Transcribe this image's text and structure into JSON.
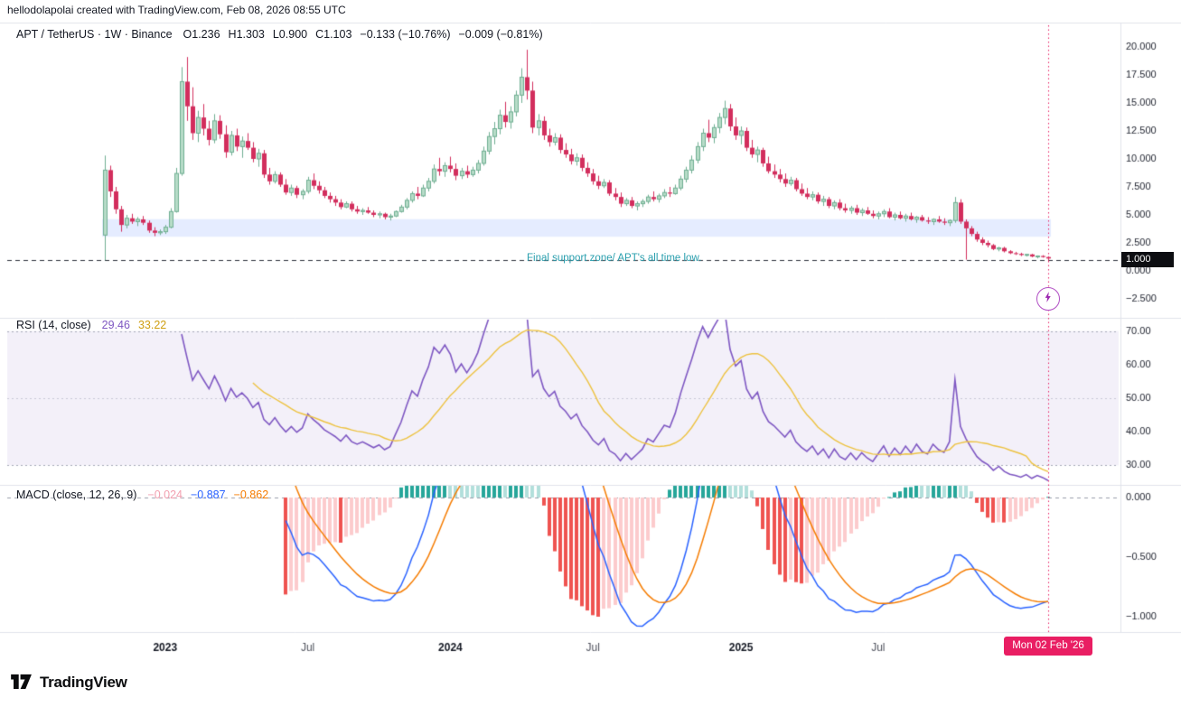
{
  "header": {
    "attribution": "hellodolapolai created with TradingView.com, Feb 08, 2026 08:55 UTC"
  },
  "footer": {
    "logo_text": "TradingView"
  },
  "legends": {
    "price": {
      "title": "APT / TetherUS · 1W · Binance",
      "ohlc": [
        "O1.236",
        "H1.303",
        "L0.900",
        "C1.103"
      ],
      "changes": [
        "−0.133 (−10.76%)",
        "−0.009 (−0.81%)"
      ]
    },
    "rsi": {
      "title": "RSI (14, close)",
      "value": "29.46",
      "ma_value": "33.22"
    },
    "macd": {
      "title": "MACD (close, 12, 26, 9)",
      "hist_value": "−0.024",
      "macd_value": "−0.887",
      "signal_value": "−0.862"
    }
  },
  "annotation_text": "Final support zone/ APT's all time low.",
  "colors": {
    "up_fill": "#b7dcc8",
    "up_border": "#6fae92",
    "down": "#d22e5d",
    "support_zone": "rgba(56,106,255,0.13)",
    "price_line": "#2a2e39",
    "annotation": "#2a9fae",
    "rsi_line": "#7e57c2",
    "rsi_ma": "#edc240",
    "rsi_band": "rgba(126,87,194,0.09)",
    "band_line": "#a5a9b8",
    "macd_line": "#2962ff",
    "signal_line": "#f57c00",
    "hist_grow_above": "#26a69a",
    "hist_fall_above": "#b2dfdb",
    "hist_grow_below": "#fccbcd",
    "hist_fall_below": "#ef5350",
    "current": "#e91e63",
    "separator": "#e0e3eb",
    "axis_text": "#1b1f2b",
    "time_text_major": "#131722",
    "time_text_minor": "#50535e"
  },
  "chart_data": {
    "type": "candlestick",
    "symbol": "APT / TetherUS",
    "interval": "1W",
    "exchange": "Binance",
    "price_axis": {
      "ticks": [
        {
          "v": 20,
          "label": "20.000"
        },
        {
          "v": 17.5,
          "label": "17.500"
        },
        {
          "v": 15,
          "label": "15.000"
        },
        {
          "v": 12.5,
          "label": "12.500"
        },
        {
          "v": 10,
          "label": "10.000"
        },
        {
          "v": 7.5,
          "label": "7.500"
        },
        {
          "v": 5,
          "label": "5.000"
        },
        {
          "v": 2.5,
          "label": "2.500"
        },
        {
          "v": 0,
          "label": "0.000"
        },
        {
          "v": -2.5,
          "label": "−2.500"
        }
      ]
    },
    "time_axis": {
      "ticks": [
        {
          "label": "2023",
          "index": 11,
          "major": true
        },
        {
          "label": "Jul",
          "index": 37,
          "major": false
        },
        {
          "label": "2024",
          "index": 63,
          "major": true
        },
        {
          "label": "Jul",
          "index": 89,
          "major": false
        },
        {
          "label": "2025",
          "index": 116,
          "major": true
        },
        {
          "label": "Jul",
          "index": 141,
          "major": false
        }
      ],
      "current_index": 172,
      "current_date_label": "Mon 02 Feb '26"
    },
    "support_zone": {
      "price_from": 3.05,
      "price_to": 4.62
    },
    "price_line": {
      "value": 1.0,
      "label": "1.000"
    },
    "indicators": {
      "rsi": {
        "length": 14,
        "ma_length": 14,
        "current": "29.46",
        "ma_current": "33.22",
        "bands": [
          70,
          50,
          30
        ],
        "ticks": [
          {
            "v": 70,
            "label": "70.00"
          },
          {
            "v": 60,
            "label": "60.00"
          },
          {
            "v": 50,
            "label": "50.00"
          },
          {
            "v": 40,
            "label": "40.00"
          },
          {
            "v": 30,
            "label": "30.00"
          }
        ]
      },
      "macd": {
        "fast": 12,
        "slow": 26,
        "signal": 9,
        "ticks": [
          {
            "v": 0,
            "label": "0.000"
          },
          {
            "v": -0.5,
            "label": "−0.500"
          },
          {
            "v": -1,
            "label": "−1.000"
          }
        ]
      }
    },
    "candles": [
      [
        3.2,
        10.3,
        0.95,
        9.0
      ],
      [
        9.0,
        9.4,
        6.6,
        7.1
      ],
      [
        7.1,
        7.5,
        5.1,
        5.5
      ],
      [
        5.5,
        5.8,
        3.5,
        4.1
      ],
      [
        4.1,
        5.0,
        3.8,
        4.7
      ],
      [
        4.7,
        5.1,
        4.2,
        4.4
      ],
      [
        4.4,
        4.8,
        4.0,
        4.6
      ],
      [
        4.6,
        4.9,
        4.1,
        4.3
      ],
      [
        4.3,
        4.5,
        3.4,
        3.6
      ],
      [
        3.6,
        3.9,
        3.1,
        3.4
      ],
      [
        3.4,
        3.7,
        3.2,
        3.5
      ],
      [
        3.5,
        4.1,
        3.3,
        3.9
      ],
      [
        3.9,
        5.6,
        3.8,
        5.3
      ],
      [
        5.3,
        9.2,
        5.2,
        8.7
      ],
      [
        8.7,
        18.2,
        8.5,
        16.9
      ],
      [
        16.9,
        19.1,
        13.4,
        14.7
      ],
      [
        14.7,
        16.4,
        11.7,
        12.3
      ],
      [
        12.3,
        14.3,
        11.5,
        13.7
      ],
      [
        13.7,
        14.9,
        12.1,
        12.7
      ],
      [
        12.7,
        13.4,
        11.2,
        11.7
      ],
      [
        11.7,
        14.0,
        11.4,
        13.4
      ],
      [
        13.4,
        13.9,
        11.8,
        12.2
      ],
      [
        12.2,
        13.0,
        10.1,
        10.6
      ],
      [
        10.6,
        12.5,
        10.3,
        12.1
      ],
      [
        12.1,
        12.7,
        10.7,
        11.1
      ],
      [
        11.1,
        12.0,
        10.1,
        11.6
      ],
      [
        11.6,
        12.3,
        10.8,
        11.0
      ],
      [
        11.0,
        11.5,
        9.7,
        10.0
      ],
      [
        10.0,
        10.9,
        9.3,
        10.5
      ],
      [
        10.5,
        10.8,
        8.3,
        8.6
      ],
      [
        8.6,
        9.2,
        7.7,
        8.0
      ],
      [
        8.0,
        8.9,
        7.8,
        8.6
      ],
      [
        8.6,
        8.8,
        7.5,
        7.7
      ],
      [
        7.7,
        8.2,
        6.8,
        7.0
      ],
      [
        7.0,
        7.7,
        6.7,
        7.4
      ],
      [
        7.4,
        7.6,
        6.5,
        6.8
      ],
      [
        6.8,
        7.3,
        6.4,
        7.1
      ],
      [
        7.1,
        8.4,
        6.9,
        8.1
      ],
      [
        8.1,
        8.7,
        7.3,
        7.6
      ],
      [
        7.6,
        8.0,
        6.9,
        7.2
      ],
      [
        7.2,
        7.5,
        6.5,
        6.7
      ],
      [
        6.7,
        7.0,
        6.1,
        6.4
      ],
      [
        6.4,
        6.7,
        5.8,
        6.1
      ],
      [
        6.1,
        6.4,
        5.5,
        5.7
      ],
      [
        5.7,
        6.2,
        5.6,
        6.0
      ],
      [
        6.0,
        6.2,
        5.3,
        5.5
      ],
      [
        5.5,
        5.8,
        5.1,
        5.3
      ],
      [
        5.3,
        5.6,
        5.0,
        5.4
      ],
      [
        5.4,
        5.7,
        5.1,
        5.2
      ],
      [
        5.2,
        5.4,
        4.8,
        5.0
      ],
      [
        5.0,
        5.3,
        4.7,
        5.1
      ],
      [
        5.1,
        5.2,
        4.6,
        4.8
      ],
      [
        4.8,
        5.1,
        4.5,
        4.9
      ],
      [
        4.9,
        5.4,
        4.8,
        5.3
      ],
      [
        5.3,
        5.9,
        5.2,
        5.7
      ],
      [
        5.7,
        6.5,
        5.5,
        6.3
      ],
      [
        6.3,
        7.1,
        6.1,
        6.9
      ],
      [
        6.9,
        7.5,
        6.4,
        6.7
      ],
      [
        6.7,
        7.7,
        6.6,
        7.4
      ],
      [
        7.4,
        8.3,
        7.1,
        8.0
      ],
      [
        8.0,
        9.5,
        7.8,
        9.1
      ],
      [
        9.1,
        10.1,
        8.5,
        8.9
      ],
      [
        8.9,
        9.7,
        8.4,
        9.4
      ],
      [
        9.4,
        10.2,
        8.8,
        9.1
      ],
      [
        9.1,
        9.6,
        8.1,
        8.5
      ],
      [
        8.5,
        9.2,
        8.2,
        8.9
      ],
      [
        8.9,
        9.4,
        8.3,
        8.6
      ],
      [
        8.6,
        9.3,
        8.4,
        9.0
      ],
      [
        9.0,
        9.9,
        8.7,
        9.6
      ],
      [
        9.6,
        11.1,
        9.4,
        10.7
      ],
      [
        10.7,
        12.4,
        10.4,
        12.0
      ],
      [
        12.0,
        13.3,
        11.3,
        12.7
      ],
      [
        12.7,
        14.4,
        12.2,
        13.9
      ],
      [
        13.9,
        15.1,
        12.8,
        13.3
      ],
      [
        13.3,
        14.7,
        12.7,
        14.2
      ],
      [
        14.2,
        16.1,
        13.8,
        15.7
      ],
      [
        15.7,
        18.1,
        15.0,
        17.3
      ],
      [
        17.3,
        19.75,
        15.3,
        16.1
      ],
      [
        16.1,
        16.9,
        12.3,
        12.8
      ],
      [
        12.8,
        14.0,
        12.1,
        13.4
      ],
      [
        13.4,
        13.8,
        11.7,
        12.1
      ],
      [
        12.1,
        12.7,
        11.1,
        11.5
      ],
      [
        11.5,
        12.3,
        11.2,
        11.9
      ],
      [
        11.9,
        12.2,
        10.5,
        10.8
      ],
      [
        10.8,
        11.4,
        10.1,
        10.4
      ],
      [
        10.4,
        10.9,
        9.5,
        9.8
      ],
      [
        9.8,
        10.5,
        9.4,
        10.1
      ],
      [
        10.1,
        10.4,
        8.9,
        9.2
      ],
      [
        9.2,
        9.7,
        8.4,
        8.7
      ],
      [
        8.7,
        9.1,
        7.7,
        8.0
      ],
      [
        8.0,
        8.5,
        7.3,
        7.6
      ],
      [
        7.6,
        8.2,
        7.4,
        7.9
      ],
      [
        7.9,
        8.1,
        6.7,
        6.9
      ],
      [
        6.9,
        7.4,
        6.3,
        6.6
      ],
      [
        6.6,
        7.0,
        5.7,
        6.0
      ],
      [
        6.0,
        6.5,
        5.8,
        6.3
      ],
      [
        6.3,
        6.6,
        5.6,
        5.8
      ],
      [
        5.8,
        6.2,
        5.4,
        6.0
      ],
      [
        6.0,
        6.4,
        5.7,
        6.2
      ],
      [
        6.2,
        6.8,
        6.0,
        6.6
      ],
      [
        6.6,
        7.1,
        6.2,
        6.4
      ],
      [
        6.4,
        6.9,
        6.1,
        6.7
      ],
      [
        6.7,
        7.3,
        6.5,
        7.0
      ],
      [
        7.0,
        7.5,
        6.6,
        6.9
      ],
      [
        6.9,
        7.7,
        6.8,
        7.4
      ],
      [
        7.4,
        8.5,
        7.2,
        8.2
      ],
      [
        8.2,
        9.3,
        7.9,
        9.0
      ],
      [
        9.0,
        10.3,
        8.7,
        9.9
      ],
      [
        9.9,
        11.5,
        9.6,
        11.1
      ],
      [
        11.1,
        12.7,
        10.7,
        12.3
      ],
      [
        12.3,
        13.5,
        11.5,
        11.9
      ],
      [
        11.9,
        13.1,
        11.4,
        12.8
      ],
      [
        12.8,
        14.1,
        12.3,
        13.7
      ],
      [
        13.7,
        15.2,
        13.1,
        14.5
      ],
      [
        14.5,
        14.9,
        12.5,
        12.9
      ],
      [
        12.9,
        13.7,
        11.7,
        12.1
      ],
      [
        12.1,
        12.9,
        11.3,
        12.5
      ],
      [
        12.5,
        12.8,
        10.7,
        11.0
      ],
      [
        11.0,
        11.7,
        10.1,
        10.4
      ],
      [
        10.4,
        11.1,
        9.7,
        10.8
      ],
      [
        10.8,
        11.0,
        9.3,
        9.6
      ],
      [
        9.6,
        10.2,
        8.7,
        8.9
      ],
      [
        8.9,
        9.5,
        8.3,
        8.6
      ],
      [
        8.6,
        9.1,
        7.9,
        8.2
      ],
      [
        8.2,
        8.7,
        7.5,
        7.8
      ],
      [
        7.8,
        8.4,
        7.6,
        8.1
      ],
      [
        8.1,
        8.3,
        7.1,
        7.3
      ],
      [
        7.3,
        7.8,
        6.7,
        6.9
      ],
      [
        6.9,
        7.4,
        6.4,
        6.6
      ],
      [
        6.6,
        7.1,
        6.3,
        6.8
      ],
      [
        6.8,
        7.0,
        6.0,
        6.2
      ],
      [
        6.2,
        6.7,
        5.8,
        6.4
      ],
      [
        6.4,
        6.6,
        5.6,
        5.8
      ],
      [
        5.8,
        6.3,
        5.5,
        6.1
      ],
      [
        6.1,
        6.4,
        5.4,
        5.6
      ],
      [
        5.6,
        6.0,
        5.2,
        5.4
      ],
      [
        5.4,
        5.8,
        5.1,
        5.6
      ],
      [
        5.6,
        5.9,
        5.0,
        5.2
      ],
      [
        5.2,
        5.6,
        4.9,
        5.4
      ],
      [
        5.4,
        5.7,
        5.0,
        5.1
      ],
      [
        5.1,
        5.4,
        4.7,
        4.9
      ],
      [
        4.9,
        5.3,
        4.6,
        5.1
      ],
      [
        5.1,
        5.5,
        4.8,
        5.3
      ],
      [
        5.3,
        5.6,
        4.7,
        4.8
      ],
      [
        4.8,
        5.2,
        4.5,
        5.0
      ],
      [
        5.0,
        5.3,
        4.6,
        4.7
      ],
      [
        4.7,
        5.1,
        4.4,
        4.9
      ],
      [
        4.9,
        5.2,
        4.5,
        4.6
      ],
      [
        4.6,
        4.9,
        4.3,
        4.8
      ],
      [
        4.8,
        5.0,
        4.4,
        4.5
      ],
      [
        4.5,
        4.8,
        4.2,
        4.4
      ],
      [
        4.4,
        4.7,
        4.1,
        4.6
      ],
      [
        4.6,
        4.9,
        4.3,
        4.4
      ],
      [
        4.4,
        4.7,
        4.1,
        4.3
      ],
      [
        4.3,
        4.6,
        4.0,
        4.5
      ],
      [
        4.5,
        6.6,
        4.3,
        6.1
      ],
      [
        6.1,
        6.4,
        4.2,
        4.4
      ],
      [
        4.4,
        4.6,
        1.0,
        3.8
      ],
      [
        3.8,
        4.0,
        3.1,
        3.3
      ],
      [
        3.3,
        3.5,
        2.6,
        2.8
      ],
      [
        2.8,
        3.0,
        2.3,
        2.5
      ],
      [
        2.5,
        2.7,
        2.1,
        2.3
      ],
      [
        2.3,
        2.4,
        1.85,
        1.95
      ],
      [
        1.95,
        2.15,
        1.75,
        2.05
      ],
      [
        2.05,
        2.15,
        1.65,
        1.75
      ],
      [
        1.75,
        1.85,
        1.5,
        1.58
      ],
      [
        1.58,
        1.7,
        1.42,
        1.52
      ],
      [
        1.52,
        1.62,
        1.32,
        1.42
      ],
      [
        1.42,
        1.52,
        1.28,
        1.47
      ],
      [
        1.47,
        1.52,
        1.22,
        1.28
      ],
      [
        1.28,
        1.38,
        1.12,
        1.33
      ],
      [
        1.33,
        1.4,
        1.18,
        1.236
      ],
      [
        1.236,
        1.303,
        0.9,
        1.103
      ]
    ]
  }
}
